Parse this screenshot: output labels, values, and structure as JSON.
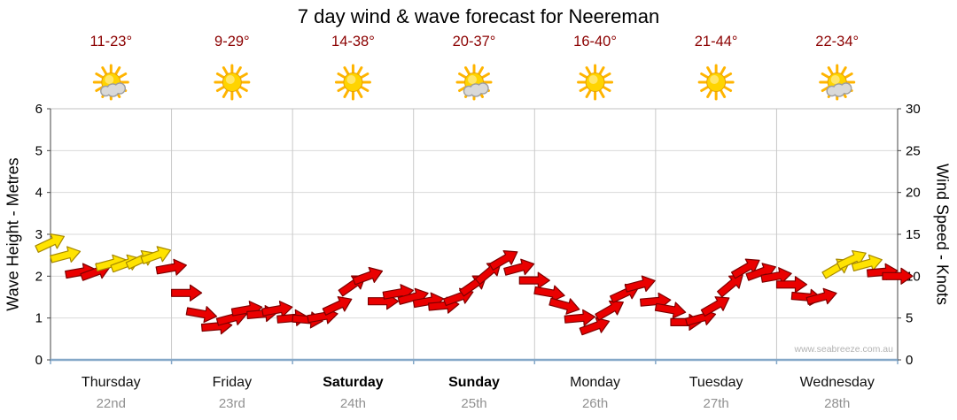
{
  "title": "7 day wind & wave forecast for Neereman",
  "watermark": "www.seabreeze.com.au",
  "colors": {
    "temp_label": "#8b0000",
    "day_label": "#111111",
    "date_label": "#909090",
    "grid_vertical": "#c9c9c9",
    "grid_horizontal": "#d9d9d9",
    "axis": "#444444",
    "top_border": "#c0c0c0",
    "bottom_axis": "#85a8c8",
    "arrow_red": "#ea0000",
    "arrow_red_outline": "#7e0000",
    "arrow_yellow": "#ffe300",
    "arrow_yellow_outline": "#a88a00",
    "sun": "#ffd400",
    "sun_ray": "#ffb400",
    "sun_outline": "#e8a000",
    "cloud": "#d9d9d9",
    "cloud_outline": "#9e9e9e"
  },
  "chart_data": {
    "type": "scatter",
    "title": "7 day wind & wave forecast for Neereman",
    "left_axis": {
      "label": "Wave Height - Metres",
      "range": [
        0,
        6
      ],
      "ticks": [
        0,
        1,
        2,
        3,
        4,
        5,
        6
      ]
    },
    "right_axis": {
      "label": "Wind Speed - Knots",
      "range": [
        0,
        30
      ],
      "ticks": [
        0,
        5,
        10,
        15,
        20,
        25,
        30
      ]
    },
    "grid": "on",
    "days": [
      {
        "name": "Thursday",
        "date": "22nd",
        "temp": "11-23°",
        "icon": "sun-cloud",
        "bold": false
      },
      {
        "name": "Friday",
        "date": "23rd",
        "temp": "9-29°",
        "icon": "sun",
        "bold": false
      },
      {
        "name": "Saturday",
        "date": "24th",
        "temp": "14-38°",
        "icon": "sun",
        "bold": true
      },
      {
        "name": "Sunday",
        "date": "25th",
        "temp": "20-37°",
        "icon": "sun-cloud",
        "bold": true
      },
      {
        "name": "Monday",
        "date": "26th",
        "temp": "16-40°",
        "icon": "sun",
        "bold": false
      },
      {
        "name": "Tuesday",
        "date": "27th",
        "temp": "21-44°",
        "icon": "sun",
        "bold": false
      },
      {
        "name": "Wednesday",
        "date": "28th",
        "temp": "22-34°",
        "icon": "sun-cloud",
        "bold": false
      }
    ],
    "wind_columns": [
      "day_fraction",
      "knots",
      "direction_deg",
      "color"
    ],
    "wind_points": [
      [
        0.0,
        14.0,
        25,
        "y"
      ],
      [
        0.125,
        12.5,
        15,
        "y"
      ],
      [
        0.25,
        10.5,
        10,
        "r"
      ],
      [
        0.375,
        10.5,
        20,
        "r"
      ],
      [
        0.5,
        11.5,
        15,
        "y"
      ],
      [
        0.625,
        11.5,
        20,
        "y"
      ],
      [
        0.75,
        12.0,
        25,
        "y"
      ],
      [
        0.875,
        12.5,
        20,
        "y"
      ],
      [
        1.0,
        11.0,
        10,
        "r"
      ],
      [
        1.125,
        8.0,
        0,
        "r"
      ],
      [
        1.25,
        5.5,
        -10,
        "r"
      ],
      [
        1.375,
        4.0,
        5,
        "r"
      ],
      [
        1.5,
        5.0,
        15,
        "r"
      ],
      [
        1.625,
        6.0,
        10,
        "r"
      ],
      [
        1.75,
        5.5,
        5,
        "r"
      ],
      [
        1.875,
        6.0,
        10,
        "r"
      ],
      [
        2.0,
        5.0,
        5,
        "r"
      ],
      [
        2.125,
        4.8,
        -5,
        "r"
      ],
      [
        2.25,
        5.2,
        10,
        "r"
      ],
      [
        2.375,
        6.5,
        25,
        "r"
      ],
      [
        2.5,
        9.0,
        35,
        "r"
      ],
      [
        2.625,
        10.0,
        20,
        "r"
      ],
      [
        2.75,
        7.0,
        0,
        "r"
      ],
      [
        2.875,
        8.0,
        10,
        "r"
      ],
      [
        3.0,
        7.5,
        15,
        "r"
      ],
      [
        3.125,
        7.0,
        10,
        "r"
      ],
      [
        3.25,
        6.5,
        5,
        "r"
      ],
      [
        3.375,
        7.5,
        20,
        "r"
      ],
      [
        3.5,
        9.0,
        35,
        "r"
      ],
      [
        3.625,
        10.5,
        40,
        "r"
      ],
      [
        3.75,
        12.0,
        30,
        "r"
      ],
      [
        3.875,
        11.0,
        15,
        "r"
      ],
      [
        4.0,
        9.5,
        0,
        "r"
      ],
      [
        4.125,
        8.0,
        -10,
        "r"
      ],
      [
        4.25,
        6.5,
        -15,
        "r"
      ],
      [
        4.375,
        5.0,
        5,
        "r"
      ],
      [
        4.5,
        4.0,
        20,
        "r"
      ],
      [
        4.625,
        6.0,
        30,
        "r"
      ],
      [
        4.75,
        8.0,
        25,
        "r"
      ],
      [
        4.875,
        9.0,
        15,
        "r"
      ],
      [
        5.0,
        7.0,
        5,
        "r"
      ],
      [
        5.125,
        6.0,
        -10,
        "r"
      ],
      [
        5.25,
        4.5,
        0,
        "r"
      ],
      [
        5.375,
        5.0,
        15,
        "r"
      ],
      [
        5.5,
        6.5,
        30,
        "r"
      ],
      [
        5.625,
        9.0,
        40,
        "r"
      ],
      [
        5.75,
        11.0,
        30,
        "r"
      ],
      [
        5.875,
        10.5,
        20,
        "r"
      ],
      [
        6.0,
        10.0,
        10,
        "r"
      ],
      [
        6.125,
        9.0,
        0,
        "r"
      ],
      [
        6.25,
        7.5,
        -5,
        "r"
      ],
      [
        6.375,
        7.5,
        15,
        "r"
      ],
      [
        6.5,
        11.0,
        30,
        "y"
      ],
      [
        6.625,
        12.0,
        25,
        "y"
      ],
      [
        6.75,
        11.5,
        15,
        "y"
      ],
      [
        6.875,
        10.5,
        5,
        "r"
      ],
      [
        7.0,
        10.0,
        0,
        "r"
      ]
    ]
  }
}
